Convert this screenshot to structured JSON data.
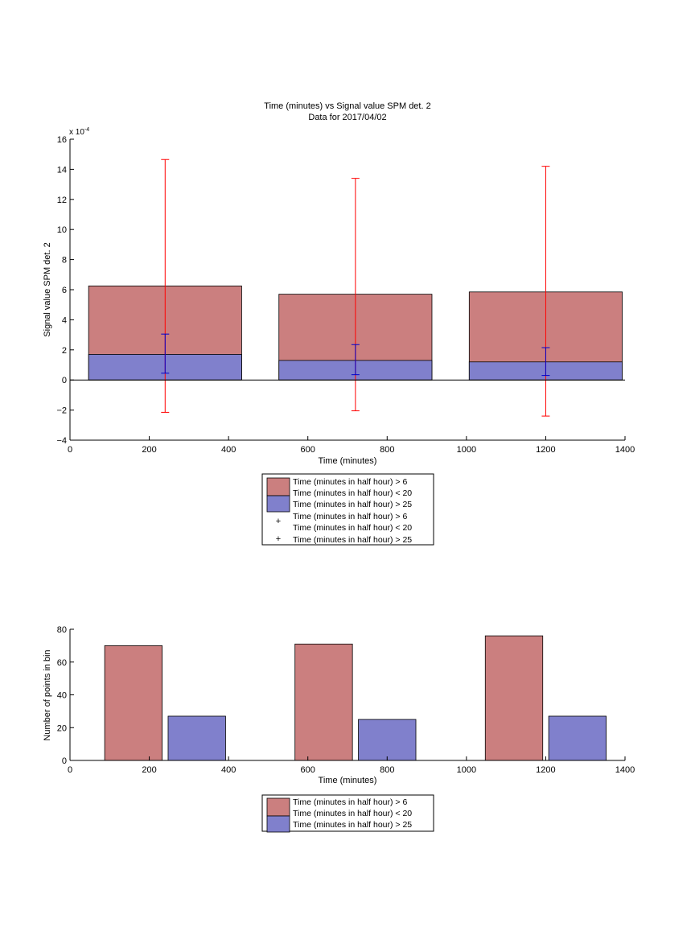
{
  "chart_data": [
    {
      "type": "bar",
      "title": [
        "Time (minutes) vs Signal value SPM det. 2",
        "Data for 2017/04/02"
      ],
      "xlabel": "Time (minutes)",
      "ylabel": "Signal value SPM det. 2",
      "exponent_label": {
        "base": "x 10",
        "power": "-4"
      },
      "xlim": [
        0,
        1400
      ],
      "ylim": [
        -4,
        16
      ],
      "xticks": [
        0,
        200,
        400,
        600,
        800,
        1000,
        1200,
        1400
      ],
      "yticks": [
        -4,
        -2,
        0,
        2,
        4,
        6,
        8,
        10,
        12,
        14,
        16
      ],
      "grid": false,
      "bar_halfwidth": 193,
      "series": [
        {
          "name": "Time (minutes in half hour) > 6 Time (minutes in half hour) < 20",
          "color": "#cb7f7f",
          "centers": [
            240,
            720,
            1200
          ],
          "values": [
            6.25,
            5.7,
            5.85
          ]
        },
        {
          "name": "Time (minutes in half hour) > 25",
          "color": "#8080cc",
          "centers": [
            240,
            720,
            1200
          ],
          "values": [
            1.7,
            1.3,
            1.2
          ]
        }
      ],
      "errorbars": [
        {
          "name": "Time (minutes in half hour) > 6 Time (minutes in half hour) < 20",
          "color": "#ff0000",
          "x": [
            240,
            720,
            1200
          ],
          "lower": [
            -2.15,
            -2.05,
            -2.4
          ],
          "upper": [
            14.65,
            13.4,
            14.2
          ]
        },
        {
          "name": "Time (minutes in half hour) > 25",
          "color": "#0000cc",
          "x": [
            240,
            720,
            1200
          ],
          "lower": [
            0.45,
            0.35,
            0.3
          ],
          "upper": [
            3.05,
            2.35,
            2.15
          ]
        }
      ],
      "legend": {
        "placement": "below",
        "entries": [
          {
            "kind": "patch",
            "color": "#cb7f7f",
            "lines": [
              "Time (minutes in half hour) > 6",
              "Time (minutes in half hour) < 20"
            ]
          },
          {
            "kind": "patch",
            "color": "#8080cc",
            "lines": [
              "Time (minutes in half hour) > 25"
            ]
          },
          {
            "kind": "marker",
            "color": "#ff0000",
            "marker": "+",
            "lines": [
              "Time (minutes in half hour) > 6",
              "Time (minutes in half hour) < 20"
            ]
          },
          {
            "kind": "marker",
            "color": "#0000cc",
            "marker": "+",
            "lines": [
              "Time (minutes in half hour) > 25"
            ]
          }
        ]
      }
    },
    {
      "type": "bar",
      "xlabel": "Time (minutes)",
      "ylabel": "Number of points in bin",
      "xlim": [
        0,
        1400
      ],
      "ylim": [
        0,
        80
      ],
      "xticks": [
        0,
        200,
        400,
        600,
        800,
        1000,
        1200,
        1400
      ],
      "yticks": [
        0,
        20,
        40,
        60,
        80
      ],
      "grid": false,
      "bar_width": 145,
      "series": [
        {
          "name": "Time (minutes in half hour) > 6 Time (minutes in half hour) < 20",
          "color": "#cb7f7f",
          "centers": [
            160,
            640,
            1120
          ],
          "values": [
            70,
            71,
            76
          ]
        },
        {
          "name": "Time (minutes in half hour) > 25",
          "color": "#8080cc",
          "centers": [
            320,
            800,
            1280
          ],
          "values": [
            27,
            25,
            27
          ]
        }
      ],
      "legend": {
        "placement": "below",
        "entries": [
          {
            "kind": "patch",
            "color": "#cb7f7f",
            "lines": [
              "Time (minutes in half hour) > 6",
              "Time (minutes in half hour) < 20"
            ]
          },
          {
            "kind": "patch",
            "color": "#8080cc",
            "lines": [
              "Time (minutes in half hour) > 25"
            ]
          }
        ]
      }
    }
  ]
}
